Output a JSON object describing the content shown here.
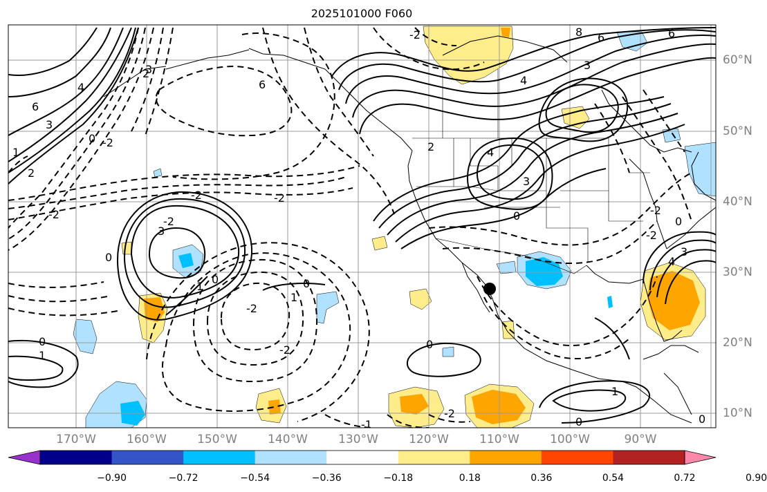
{
  "title": "2025101000 F060",
  "lon_labels": [
    "170°W",
    "160°W",
    "150°W",
    "140°W",
    "130°W",
    "120°W",
    "110°W",
    "100°W",
    "90°W"
  ],
  "lat_labels": [
    "60°N",
    "50°N",
    "40°N",
    "30°N",
    "20°N",
    "10°N"
  ],
  "colorbar": {
    "ticks": [
      "−0.90",
      "−0.72",
      "−0.54",
      "−0.36",
      "−0.18",
      "0.18",
      "0.36",
      "0.54",
      "0.72",
      "0.90"
    ],
    "colors": [
      "#9932cc",
      "#00008b",
      "#3455c8",
      "#00bfff",
      "#b0e2ff",
      "#ffffff",
      "#ffec8b",
      "#ffa500",
      "#ff4500",
      "#b22222",
      "#ff88aa"
    ]
  },
  "contour_labels": [
    "-2",
    "6",
    "6",
    "3",
    "-2",
    "2",
    "-2",
    "0",
    "0",
    "1",
    "-2",
    "-2",
    "0",
    "-2",
    "0",
    "1",
    "-2",
    "4",
    "3",
    "3",
    "-2",
    "2",
    "4",
    "3",
    "0",
    "8",
    "6",
    "3",
    "4",
    "6",
    "-2",
    "0",
    "-2",
    "0",
    "1",
    "1",
    "-1",
    "0",
    "0",
    "1",
    "3",
    "-2",
    "0",
    "2",
    "4"
  ],
  "marker": "station-dot"
}
